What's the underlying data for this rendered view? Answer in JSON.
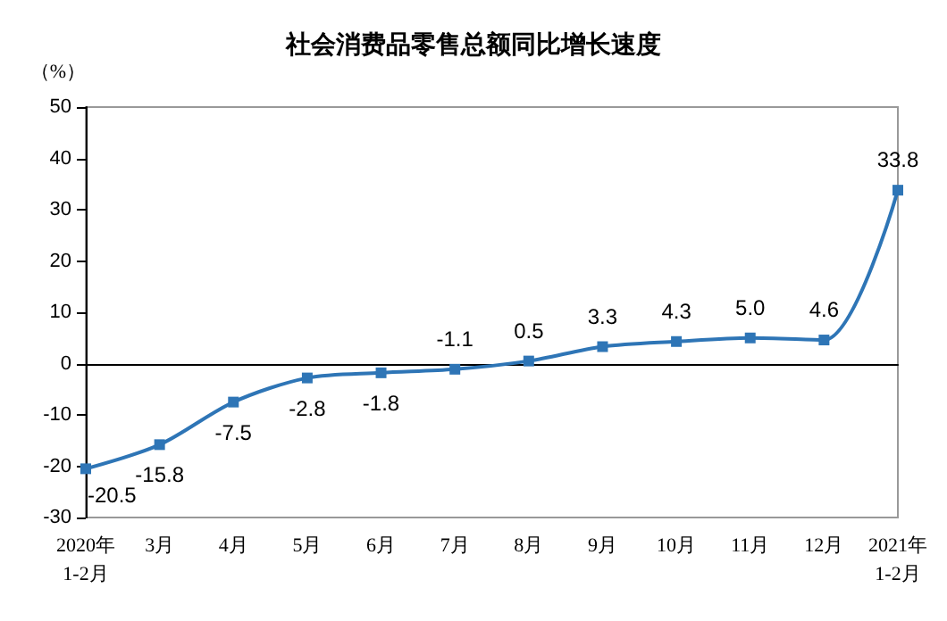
{
  "chart_data": {
    "type": "line",
    "title": "社会消费品零售总额同比增长速度",
    "ylabel": "（%）",
    "categories": [
      "2020年\n1-2月",
      "3月",
      "4月",
      "5月",
      "6月",
      "7月",
      "8月",
      "9月",
      "10月",
      "11月",
      "12月",
      "2021年\n1-2月"
    ],
    "series": [
      {
        "color": "#2e75b6",
        "values": [
          -20.5,
          -15.8,
          -7.5,
          -2.8,
          -1.8,
          -1.1,
          0.5,
          3.3,
          4.3,
          5.0,
          4.6,
          33.8
        ],
        "value_labels": [
          "-20.5",
          "-15.8",
          "-7.5",
          "-2.8",
          "-1.8",
          "-1.1",
          "0.5",
          "3.3",
          "4.3",
          "5.0",
          "4.6",
          "33.8"
        ]
      }
    ],
    "ylim": [
      -30,
      50
    ],
    "yticks": [
      -30,
      -20,
      -10,
      0,
      10,
      20,
      30,
      40,
      50
    ],
    "marker": "square",
    "line_style": "solid"
  }
}
